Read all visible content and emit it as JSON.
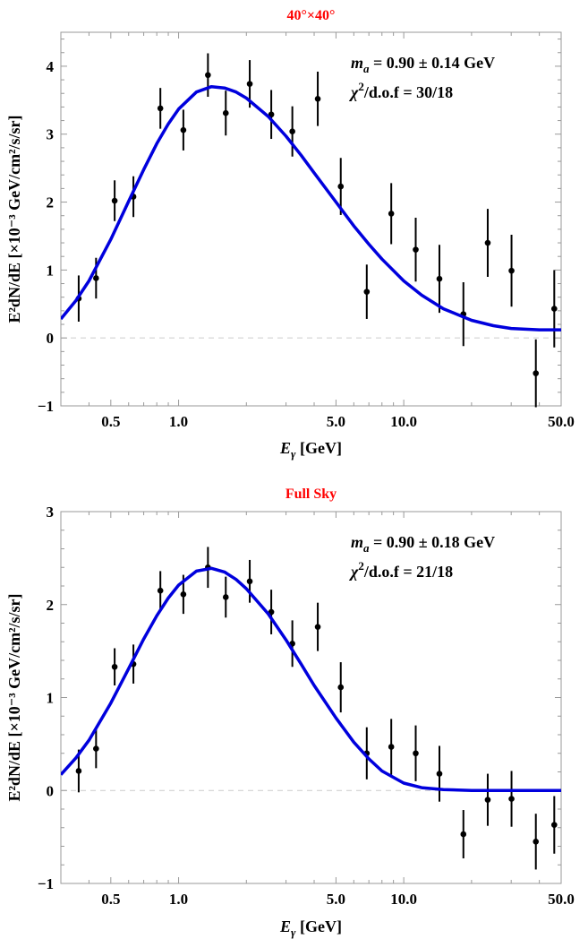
{
  "colors": {
    "title": "#ff0000",
    "fit_curve": "#0000dd",
    "data_points": "#000000",
    "zero_line": "#cccccc",
    "frame": "#999999"
  },
  "chart_data": [
    {
      "type": "scatter",
      "title": "40°×40°",
      "xlabel": {
        "main": "E",
        "sub": "γ",
        "rest": " [GeV]"
      },
      "ylabel": "E²dN/dE [×10⁻³ GeV/cm²/s/sr]",
      "xscale": "log",
      "xlim": [
        0.3,
        50
      ],
      "ylim": [
        -1,
        4.5
      ],
      "xticks": [
        0.5,
        1.0,
        5.0,
        10.0,
        50.0
      ],
      "xtick_labels": [
        "0.5",
        "1.0",
        "5.0",
        "10.0",
        "50.0"
      ],
      "yticks": [
        -1,
        0,
        1,
        2,
        3,
        4
      ],
      "ytick_labels": [
        "−1",
        "0",
        "1",
        "2",
        "3",
        "4"
      ],
      "annotations": {
        "mass": {
          "sym": "m",
          "sub": "a",
          "text": " = 0.90 ± 0.14 GeV"
        },
        "chi2": {
          "sym": "χ",
          "sup": "2",
          "text": "/d.o.f = 30/18"
        }
      },
      "series": [
        {
          "kind": "points",
          "x": [
            0.36,
            0.43,
            0.52,
            0.63,
            0.83,
            1.05,
            1.35,
            1.62,
            2.07,
            2.58,
            3.2,
            4.15,
            5.25,
            6.85,
            8.8,
            11.3,
            14.4,
            18.4,
            23.6,
            30.1,
            38.6,
            46.6
          ],
          "y": [
            0.58,
            0.88,
            2.02,
            2.08,
            3.38,
            3.06,
            3.87,
            3.31,
            3.74,
            3.29,
            3.04,
            3.52,
            2.23,
            0.68,
            1.83,
            1.3,
            0.87,
            0.35,
            1.4,
            0.99,
            -0.52,
            0.43
          ],
          "err": [
            0.34,
            0.3,
            0.3,
            0.3,
            0.3,
            0.3,
            0.32,
            0.33,
            0.35,
            0.36,
            0.37,
            0.4,
            0.42,
            0.4,
            0.45,
            0.47,
            0.5,
            0.47,
            0.5,
            0.53,
            0.5,
            0.57
          ]
        },
        {
          "kind": "curve",
          "x": [
            0.3,
            0.35,
            0.4,
            0.5,
            0.6,
            0.7,
            0.8,
            0.9,
            1.0,
            1.2,
            1.4,
            1.6,
            1.8,
            2.0,
            2.5,
            3.0,
            3.5,
            4.0,
            5.0,
            6.0,
            7.0,
            8.0,
            10.0,
            12.0,
            15.0,
            20.0,
            25.0,
            30.0,
            40.0,
            50.0
          ],
          "y": [
            0.28,
            0.55,
            0.84,
            1.45,
            2.01,
            2.48,
            2.86,
            3.15,
            3.37,
            3.62,
            3.7,
            3.68,
            3.62,
            3.53,
            3.26,
            2.97,
            2.69,
            2.43,
            2.0,
            1.65,
            1.38,
            1.16,
            0.84,
            0.63,
            0.43,
            0.26,
            0.18,
            0.14,
            0.12,
            0.12
          ]
        }
      ]
    },
    {
      "type": "scatter",
      "title": "Full Sky",
      "xlabel": {
        "main": "E",
        "sub": "γ",
        "rest": " [GeV]"
      },
      "ylabel": "E²dN/dE [×10⁻³ GeV/cm²/s/sr]",
      "xscale": "log",
      "xlim": [
        0.3,
        50
      ],
      "ylim": [
        -1,
        3
      ],
      "xticks": [
        0.5,
        1.0,
        5.0,
        10.0,
        50.0
      ],
      "xtick_labels": [
        "0.5",
        "1.0",
        "5.0",
        "10.0",
        "50.0"
      ],
      "yticks": [
        -1,
        0,
        1,
        2,
        3
      ],
      "ytick_labels": [
        "−1",
        "0",
        "1",
        "2",
        "3"
      ],
      "annotations": {
        "mass": {
          "sym": "m",
          "sub": "a",
          "text": " = 0.90 ± 0.18 GeV"
        },
        "chi2": {
          "sym": "χ",
          "sup": "2",
          "text": "/d.o.f = 21/18"
        }
      },
      "series": [
        {
          "kind": "points",
          "x": [
            0.36,
            0.43,
            0.52,
            0.63,
            0.83,
            1.05,
            1.35,
            1.62,
            2.07,
            2.58,
            3.2,
            4.15,
            5.25,
            6.85,
            8.8,
            11.3,
            14.4,
            18.4,
            23.6,
            30.1,
            38.6,
            46.6
          ],
          "y": [
            0.21,
            0.45,
            1.33,
            1.36,
            2.15,
            2.11,
            2.4,
            2.08,
            2.25,
            1.92,
            1.58,
            1.76,
            1.11,
            0.4,
            0.47,
            0.4,
            0.18,
            -0.47,
            -0.1,
            -0.09,
            -0.55,
            -0.37
          ],
          "err": [
            0.23,
            0.21,
            0.2,
            0.21,
            0.21,
            0.21,
            0.22,
            0.22,
            0.23,
            0.24,
            0.25,
            0.26,
            0.27,
            0.28,
            0.3,
            0.3,
            0.3,
            0.26,
            0.28,
            0.3,
            0.3,
            0.31
          ]
        },
        {
          "kind": "curve",
          "x": [
            0.3,
            0.35,
            0.4,
            0.5,
            0.6,
            0.7,
            0.8,
            0.9,
            1.0,
            1.2,
            1.4,
            1.6,
            1.8,
            2.0,
            2.5,
            3.0,
            3.5,
            4.0,
            5.0,
            6.0,
            7.0,
            8.0,
            10.0,
            12.0,
            15.0,
            20.0,
            25.0,
            30.0,
            40.0,
            50.0
          ],
          "y": [
            0.17,
            0.35,
            0.54,
            0.94,
            1.31,
            1.63,
            1.88,
            2.07,
            2.21,
            2.36,
            2.39,
            2.35,
            2.27,
            2.17,
            1.9,
            1.62,
            1.36,
            1.13,
            0.78,
            0.52,
            0.34,
            0.21,
            0.08,
            0.03,
            0.01,
            0.0,
            0.0,
            0.0,
            0.0,
            0.0
          ]
        }
      ]
    }
  ]
}
